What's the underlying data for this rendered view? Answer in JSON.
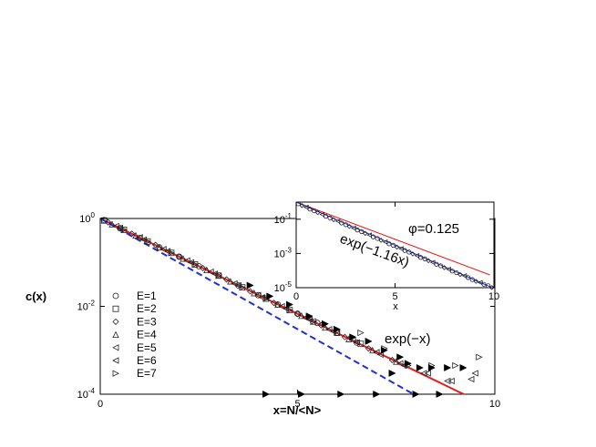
{
  "chart_data": [
    {
      "panel": "main",
      "type": "scatter",
      "xlabel": "x=N/<N>",
      "ylabel": "c(x)",
      "xlim": [
        0,
        10
      ],
      "ylim_log10": [
        -4,
        0
      ],
      "log_scale_y": true,
      "grid": false,
      "x_ticks": [
        "0",
        "5",
        "10"
      ],
      "y_ticks": [
        "10^0",
        "10^-2",
        "10^-4"
      ],
      "legend_position": "left",
      "legend": [
        "E=1",
        "E=2",
        "E=3",
        "E=4",
        "E=5",
        "E=6",
        "E=7"
      ],
      "series": [
        {
          "name": "E=1",
          "marker": "circle",
          "x": [
            0.1,
            0.5,
            1.0,
            1.5,
            2.0,
            2.5,
            3.0,
            3.5,
            4.0,
            4.5,
            5.0,
            5.5,
            6.0,
            6.5
          ],
          "y": [
            0.92,
            0.6,
            0.36,
            0.22,
            0.135,
            0.082,
            0.05,
            0.03,
            0.018,
            0.011,
            0.0068,
            0.0042,
            0.0025,
            0.0015
          ]
        },
        {
          "name": "E=2",
          "marker": "square",
          "x": [
            0.1,
            0.6,
            1.2,
            1.8,
            2.4,
            3.0,
            3.6,
            4.2,
            4.8,
            5.4,
            6.0,
            6.6
          ],
          "y": [
            0.9,
            0.55,
            0.3,
            0.165,
            0.09,
            0.05,
            0.027,
            0.015,
            0.0082,
            0.0045,
            0.0025,
            0.0014
          ]
        },
        {
          "name": "E=3",
          "marker": "diamond",
          "x": [
            0.2,
            0.8,
            1.4,
            2.0,
            2.6,
            3.2,
            3.8,
            4.4,
            5.0,
            5.6,
            6.2,
            6.8,
            7.4
          ],
          "y": [
            0.82,
            0.45,
            0.25,
            0.135,
            0.074,
            0.041,
            0.022,
            0.012,
            0.0067,
            0.0037,
            0.002,
            0.0011,
            0.0006
          ]
        },
        {
          "name": "E=4",
          "marker": "triangle-up",
          "x": [
            0.3,
            0.9,
            1.5,
            2.1,
            2.7,
            3.3,
            3.9,
            4.5,
            5.1,
            5.7,
            6.3,
            6.9,
            7.5
          ],
          "y": [
            0.74,
            0.41,
            0.22,
            0.122,
            0.067,
            0.037,
            0.02,
            0.011,
            0.0061,
            0.0033,
            0.0018,
            0.001,
            0.00055
          ]
        },
        {
          "name": "E=5",
          "marker": "triangle-left",
          "x": [
            0.4,
            1.0,
            1.6,
            2.2,
            2.8,
            3.4,
            4.0,
            4.6,
            5.2,
            5.8,
            6.4,
            7.0,
            7.6,
            8.2,
            8.8,
            9.4
          ],
          "y": [
            0.67,
            0.37,
            0.2,
            0.11,
            0.061,
            0.033,
            0.018,
            0.01,
            0.0055,
            0.003,
            0.0017,
            0.0009,
            0.0005,
            0.0003,
            0.0002,
            0.00022
          ]
        },
        {
          "name": "E=6",
          "marker": "triangle-left-open",
          "x": [
            0.5,
            1.1,
            1.7,
            2.3,
            2.9,
            3.5,
            4.1,
            4.7,
            5.3,
            5.9,
            6.5,
            7.1,
            7.7,
            8.3,
            8.9,
            9.5
          ],
          "y": [
            0.61,
            0.33,
            0.18,
            0.1,
            0.055,
            0.03,
            0.016,
            0.009,
            0.005,
            0.0027,
            0.0015,
            0.0008,
            0.00045,
            0.0003,
            0.0002,
            0.0003
          ]
        },
        {
          "name": "E=7",
          "marker": "triangle-right",
          "x": [
            0.6,
            1.2,
            1.8,
            2.4,
            3.0,
            3.6,
            4.2,
            4.8,
            5.4,
            6.0,
            6.6,
            7.2,
            7.8,
            8.4,
            9.0,
            9.6
          ],
          "y": [
            0.55,
            0.3,
            0.165,
            0.09,
            0.05,
            0.027,
            0.015,
            0.0082,
            0.0045,
            0.0027,
            0.0025,
            0.0011,
            0.00045,
            0.00045,
            0.00045,
            0.0007
          ]
        }
      ],
      "filled_markers": {
        "x": [
          3.8,
          4.3,
          4.8,
          5.3,
          5.7,
          6.0,
          6.4,
          6.8,
          7.2,
          7.6,
          7.8,
          8.1,
          8.4,
          8.8,
          9.2,
          4.2,
          5.1,
          6.1,
          7.0,
          7.4,
          8.0,
          8.6
        ],
        "y": [
          0.03,
          0.017,
          0.011,
          0.006,
          0.004,
          0.003,
          0.002,
          0.0016,
          0.001,
          0.0007,
          0.0005,
          0.0004,
          0.0004,
          0.0004,
          0.0004,
          0.0001,
          0.0001,
          0.0001,
          0.0001,
          0.0003,
          0.0001,
          0.0001
        ]
      },
      "fits": [
        {
          "label": "exp(−x)",
          "color": "#e02020",
          "style": "solid",
          "a": 1.0,
          "x_range": [
            0,
            9.2
          ]
        },
        {
          "label": "",
          "color": "#2030d0",
          "style": "dashed",
          "a": 1.16,
          "x_range": [
            0,
            7.9
          ]
        }
      ],
      "annotations": [
        "exp(−x)"
      ]
    },
    {
      "panel": "inset",
      "type": "scatter",
      "xlabel": "x",
      "xlim": [
        0,
        10
      ],
      "ylim_log10": [
        -5,
        0
      ],
      "log_scale_y": true,
      "x_ticks": [
        "0",
        "5",
        "10"
      ],
      "y_ticks": [
        "10^-1",
        "10^-3",
        "10^-5"
      ],
      "annotations": [
        "φ=0.125",
        "exp(−1.16x)"
      ],
      "fits": [
        {
          "label": "",
          "color": "#e02020",
          "style": "solid",
          "a": 1.0,
          "x_range": [
            0,
            9.8
          ]
        },
        {
          "label": "exp(−1.16x)",
          "color": "#2030d0",
          "style": "solid",
          "a": 1.16,
          "x_range": [
            0,
            9.8
          ]
        }
      ],
      "points": {
        "x": [
          0.2,
          0.6,
          1.0,
          1.4,
          1.8,
          2.2,
          2.6,
          3.0,
          3.4,
          3.8,
          4.2,
          4.6,
          5.0,
          5.4,
          5.8,
          6.2,
          6.6,
          7.0,
          7.4,
          7.8,
          8.2,
          8.6,
          9.0,
          9.4,
          9.8
        ],
        "y": [
          0.8,
          0.5,
          0.31,
          0.19,
          0.12,
          0.077,
          0.048,
          0.03,
          0.019,
          0.012,
          0.0075,
          0.0047,
          0.003,
          0.0019,
          0.0012,
          0.00075,
          0.00048,
          0.0003,
          0.00019,
          0.00012,
          7.5e-05,
          5e-05,
          3e-05,
          2e-05,
          1.3e-05
        ]
      }
    }
  ]
}
